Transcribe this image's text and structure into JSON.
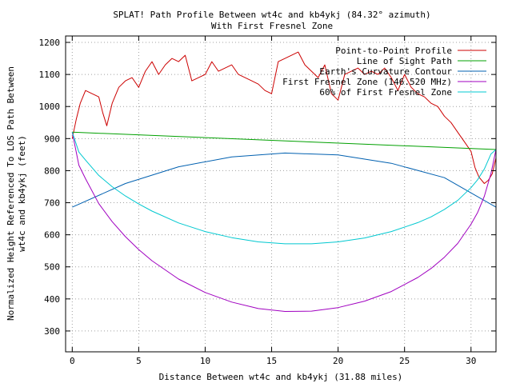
{
  "chart_data": {
    "type": "line",
    "title": "SPLAT! Path Profile Between wt4c and kb4ykj (84.32° azimuth)",
    "subtitle": "With First Fresnel Zone",
    "xlabel": "Distance Between wt4c and kb4ykj (31.88 miles)",
    "ylabel_line1": "Normalized Height Referenced To LOS Path Between",
    "ylabel_line2": "wt4c and kb4ykj (feet)",
    "xlim": [
      -0.5,
      31.88
    ],
    "ylim": [
      235,
      1220
    ],
    "xticks": [
      0,
      5,
      10,
      15,
      20,
      25,
      30
    ],
    "yticks": [
      300,
      400,
      500,
      600,
      700,
      800,
      900,
      1000,
      1100,
      1200
    ],
    "grid": true,
    "legend_position": "top-right",
    "series": [
      {
        "name": "Point-to-Point Profile",
        "color": "#cc0000",
        "x": [
          0,
          0.3,
          0.6,
          1.0,
          1.5,
          2.0,
          2.3,
          2.6,
          3.0,
          3.5,
          4.0,
          4.5,
          5.0,
          5.5,
          6.0,
          6.5,
          7.0,
          7.5,
          8.0,
          8.5,
          9.0,
          9.5,
          10.0,
          10.5,
          11.0,
          11.5,
          12.0,
          12.5,
          13.0,
          13.5,
          14.0,
          14.5,
          15.0,
          15.5,
          16.0,
          16.5,
          17.0,
          17.5,
          18.0,
          18.5,
          19.0,
          19.5,
          20.0,
          20.5,
          21.0,
          21.5,
          22.0,
          22.5,
          23.0,
          23.5,
          24.0,
          24.5,
          25.0,
          25.5,
          26.0,
          26.5,
          27.0,
          27.5,
          28.0,
          28.5,
          29.0,
          29.5,
          30.0,
          30.3,
          30.6,
          31.0,
          31.3,
          31.6,
          31.88
        ],
        "values": [
          900,
          960,
          1010,
          1050,
          1040,
          1030,
          980,
          940,
          1010,
          1060,
          1080,
          1090,
          1060,
          1110,
          1140,
          1100,
          1130,
          1150,
          1140,
          1160,
          1080,
          1090,
          1100,
          1140,
          1110,
          1120,
          1130,
          1100,
          1090,
          1080,
          1070,
          1050,
          1040,
          1140,
          1150,
          1160,
          1170,
          1130,
          1110,
          1090,
          1130,
          1040,
          1020,
          1100,
          1110,
          1120,
          1100,
          1110,
          1100,
          1120,
          1090,
          1050,
          1100,
          1060,
          1040,
          1030,
          1010,
          1000,
          970,
          950,
          920,
          890,
          860,
          810,
          780,
          760,
          770,
          790,
          840
        ]
      },
      {
        "name": "Line of Sight Path",
        "color": "#00a000",
        "x": [
          0,
          31.88
        ],
        "values": [
          920,
          866
        ]
      },
      {
        "name": "Earth's Curvature Contour",
        "color": "#0060b0",
        "x": [
          0,
          4,
          8,
          12,
          16,
          20,
          24,
          28,
          31.88
        ],
        "values": [
          686,
          760,
          812,
          843,
          855,
          849,
          823,
          778,
          686
        ]
      },
      {
        "name": "First Fresnel Zone (146.520 MHz)",
        "color": "#a000c0",
        "x": [
          0,
          0.5,
          1,
          2,
          3,
          4,
          5,
          6,
          8,
          10,
          12,
          14,
          16,
          18,
          20,
          22,
          24,
          26,
          27,
          28,
          29,
          30,
          30.5,
          31,
          31.5,
          31.88
        ],
        "values": [
          920,
          817,
          775,
          697,
          641,
          594,
          554,
          519,
          462,
          420,
          390,
          370,
          361,
          362,
          373,
          393,
          423,
          467,
          495,
          530,
          573,
          633,
          670,
          720,
          791,
          866
        ]
      },
      {
        "name": "60% of First Fresnel Zone",
        "color": "#00c8d0",
        "x": [
          0,
          0.5,
          1,
          2,
          3,
          4,
          5,
          6,
          8,
          10,
          12,
          14,
          16,
          18,
          20,
          22,
          24,
          26,
          27,
          28,
          29,
          30,
          30.5,
          31,
          31.5,
          31.88
        ],
        "values": [
          920,
          858,
          833,
          785,
          750,
          721,
          696,
          674,
          637,
          610,
          591,
          578,
          572,
          572,
          578,
          590,
          610,
          638,
          656,
          679,
          707,
          747,
          772,
          805,
          852,
          866
        ]
      }
    ]
  }
}
